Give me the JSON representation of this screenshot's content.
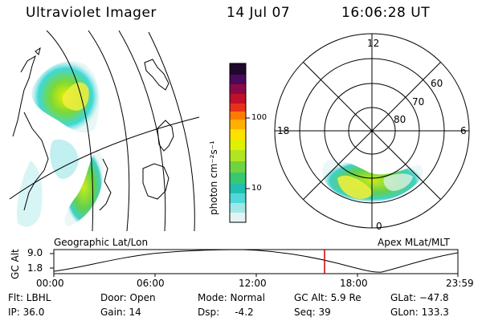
{
  "header": {
    "instrument": "Ultraviolet Imager",
    "date": "14 Jul 07",
    "time": "16:06:28 UT"
  },
  "colorbar": {
    "unit_label": "photon cm⁻²s⁻¹",
    "ticks": [
      "100",
      "10"
    ],
    "colors": [
      "#2a0a3a",
      "#3b0a55",
      "#7a0a4a",
      "#b00a2a",
      "#e0201a",
      "#ff6a00",
      "#ffa800",
      "#ffd800",
      "#e8f000",
      "#b8e820",
      "#7ad838",
      "#40c868",
      "#20c0a8",
      "#40d8d8",
      "#90e8e8",
      "#e0f0f0"
    ]
  },
  "left_map": {
    "label": "Geographic Lat/Lon"
  },
  "right_polar": {
    "label": "Apex MLat/MLT",
    "mlt_labels": {
      "top": "12",
      "left": "18",
      "right": "6",
      "bottom": "0"
    },
    "lat_labels": [
      "60",
      "70",
      "80"
    ]
  },
  "altitude_plot": {
    "ylabel": "GC Alt",
    "yticks": [
      "9.0",
      "1.8"
    ],
    "xticks": [
      "00:00",
      "06:00",
      "12:00",
      "18:00",
      "23:59"
    ],
    "current_time_fraction": 0.67,
    "marker_color": "#cc0000"
  },
  "info": {
    "flt": "Flt: LBHL",
    "ip": "IP: 36.0",
    "door": "Door: Open",
    "gain": "Gain: 14",
    "mode": "Mode: Normal",
    "dsp": "Dsp:     -4.2",
    "gc_alt": "GC Alt: 5.9 Re",
    "seq": "Seq: 39",
    "glat": "GLat: −47.8",
    "glon": "GLon: 133.3"
  }
}
